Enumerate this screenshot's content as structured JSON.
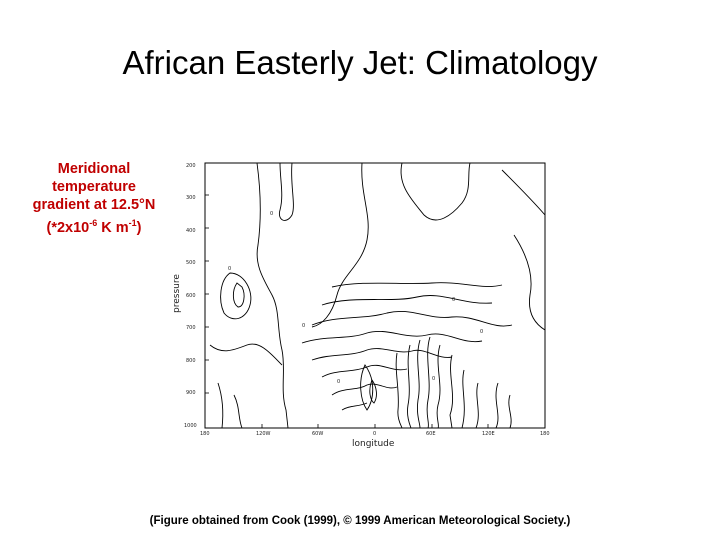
{
  "slide": {
    "title": "African Easterly Jet: Climatology",
    "side_label": {
      "line1": "Meridional",
      "line2": "temperature",
      "line3": "gradient at 12.5°N",
      "line4_a": "(*2x10",
      "line4_sup1": "-6",
      "line4_b": " K m",
      "line4_sup2": "-1",
      "line4_c": ")"
    },
    "caption": "(Figure obtained from Cook (1999), © 1999 American Meteorological Society.)"
  },
  "figure": {
    "x_axis_label": "longitude",
    "y_axis_label": "pressure",
    "x_ticks": [
      "180",
      "120W",
      "60W",
      "0",
      "60E",
      "120E",
      "180"
    ],
    "y_ticks": [
      "200",
      "300",
      "400",
      "500",
      "600",
      "700",
      "800",
      "900",
      "1000"
    ],
    "contour_labels": [
      "0",
      "0",
      "0",
      "0",
      "0",
      "0",
      "0"
    ]
  },
  "colors": {
    "side_label": "#c00000",
    "contour": "#000000"
  }
}
